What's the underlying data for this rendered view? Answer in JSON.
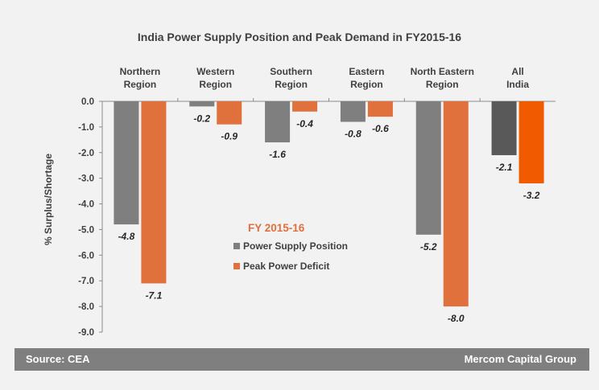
{
  "chart_data": {
    "type": "bar",
    "title": "India Power Supply Position and Peak Demand  in FY2015-16",
    "ylabel": "% Surplus/Shortage",
    "xlabel": "",
    "ylim": [
      -9.0,
      0.0
    ],
    "yticks": [
      "0.0",
      "-1.0",
      "-2.0",
      "-3.0",
      "-4.0",
      "-5.0",
      "-6.0",
      "-7.0",
      "-8.0",
      "-9.0"
    ],
    "categories": [
      [
        "Northern",
        "Region"
      ],
      [
        "Western",
        "Region"
      ],
      [
        "Southern",
        "Region"
      ],
      [
        "Eastern",
        "Region"
      ],
      [
        "North Eastern",
        "Region"
      ],
      [
        "All",
        "India"
      ]
    ],
    "legend_title": "FY 2015-16",
    "legend_placement": "center",
    "grid": false,
    "series": [
      {
        "name": "Power Supply Position",
        "color": "#7f7f7f",
        "highlight_color": "#595959",
        "values": [
          -4.8,
          -0.2,
          -1.6,
          -0.8,
          -5.2,
          -2.1
        ],
        "labels": [
          "-4.8",
          "-0.2",
          "-1.6",
          "-0.8",
          "-5.2",
          "-2.1"
        ]
      },
      {
        "name": "Peak Power Deficit",
        "color": "#e0703c",
        "highlight_color": "#f25a00",
        "values": [
          -7.1,
          -0.9,
          -0.4,
          -0.6,
          -8.0,
          -3.2
        ],
        "labels": [
          "-7.1",
          "-0.9",
          "-0.4",
          "-0.6",
          "-8.0",
          "-3.2"
        ]
      }
    ]
  },
  "footer": {
    "source": "Source: CEA",
    "brand": "Mercom Capital Group"
  }
}
